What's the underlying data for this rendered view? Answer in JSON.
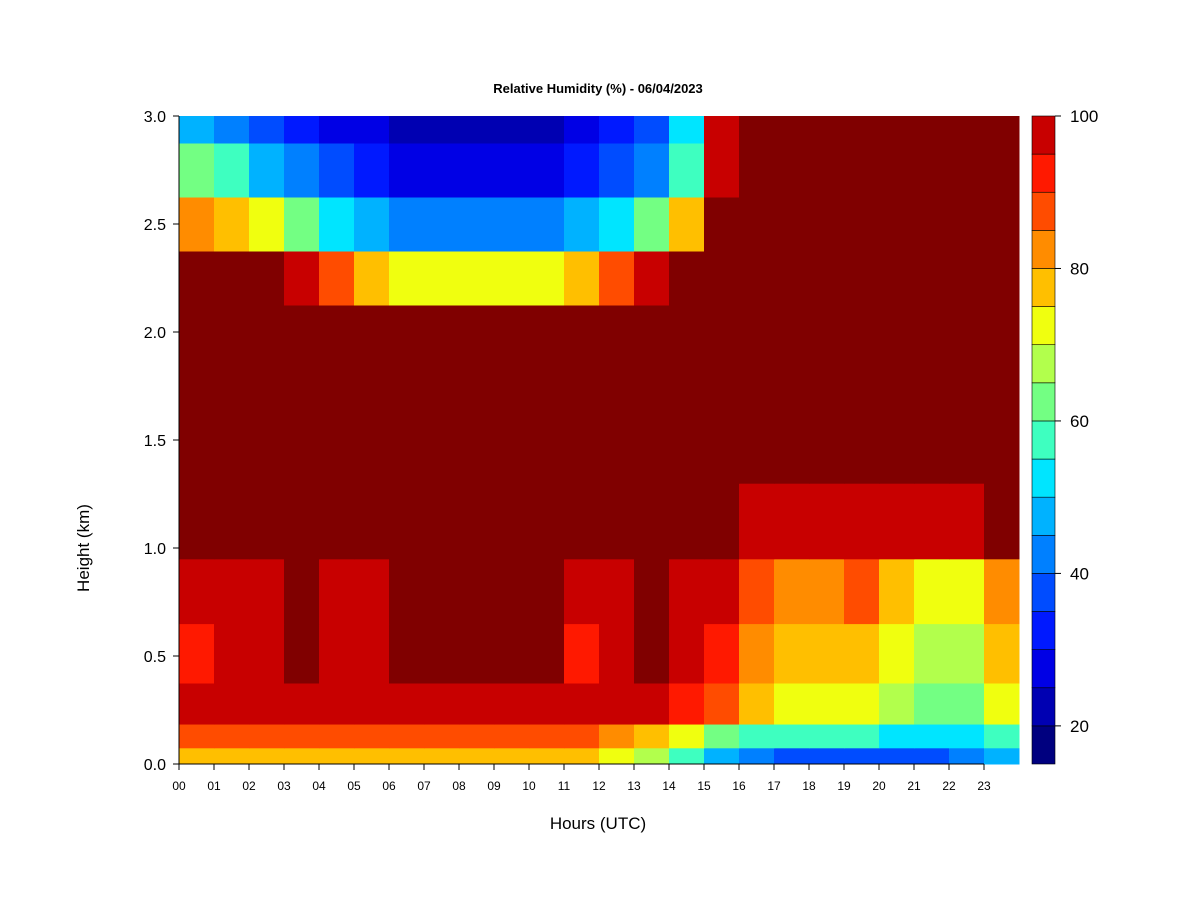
{
  "chart_data": {
    "type": "heatmap",
    "title": "Relative Humidity (%) - 06/04/2023",
    "xlabel": "Hours (UTC)",
    "ylabel": "Height (km)",
    "x_ticks": [
      "00",
      "01",
      "02",
      "03",
      "04",
      "05",
      "06",
      "07",
      "08",
      "09",
      "10",
      "11",
      "12",
      "13",
      "14",
      "15",
      "16",
      "17",
      "18",
      "19",
      "20",
      "21",
      "22",
      "23"
    ],
    "y_ticks": [
      "0.0",
      "0.5",
      "1.0",
      "1.5",
      "2.0",
      "2.5",
      "3.0"
    ],
    "xlim": [
      0,
      24
    ],
    "ylim": [
      0,
      3.0
    ],
    "colorbar": {
      "range": [
        15,
        100
      ],
      "ticks": [
        "20",
        "40",
        "60",
        "80",
        "100"
      ],
      "levels": [
        15,
        20,
        25,
        30,
        35,
        40,
        45,
        50,
        55,
        60,
        65,
        70,
        75,
        80,
        85,
        90,
        95,
        100
      ],
      "colors": [
        "#00007f",
        "#0000b2",
        "#0000e5",
        "#0019ff",
        "#004cff",
        "#0080ff",
        "#00b2ff",
        "#00e5ff",
        "#3effc0",
        "#73ff83",
        "#b2ff4c",
        "#f0ff0f",
        "#ffbf00",
        "#ff8c00",
        "#ff4c00",
        "#ff1900",
        "#c80000",
        "#800000"
      ]
    },
    "grid": false,
    "rows": [
      {
        "height_km": 3.0,
        "values": [
          45,
          40,
          35,
          30,
          28,
          25,
          22,
          20,
          20,
          20,
          22,
          25,
          30,
          38,
          50,
          95,
          100,
          100,
          100,
          100,
          100,
          100,
          100,
          100
        ]
      },
      {
        "height_km": 2.75,
        "values": [
          60,
          55,
          48,
          40,
          35,
          30,
          28,
          27,
          27,
          27,
          28,
          30,
          35,
          42,
          55,
          95,
          100,
          100,
          100,
          100,
          100,
          100,
          100,
          100
        ]
      },
      {
        "height_km": 2.5,
        "values": [
          80,
          75,
          70,
          60,
          50,
          45,
          42,
          40,
          40,
          40,
          42,
          45,
          50,
          60,
          75,
          100,
          100,
          100,
          100,
          100,
          100,
          100,
          100,
          100
        ]
      },
      {
        "height_km": 2.25,
        "values": [
          100,
          100,
          100,
          95,
          85,
          75,
          70,
          70,
          70,
          70,
          70,
          75,
          85,
          95,
          100,
          100,
          100,
          100,
          100,
          100,
          100,
          100,
          100,
          100
        ]
      },
      {
        "height_km": 2.0,
        "values": [
          100,
          100,
          100,
          100,
          100,
          100,
          100,
          100,
          100,
          100,
          100,
          100,
          100,
          100,
          100,
          100,
          100,
          100,
          100,
          100,
          100,
          100,
          100,
          100
        ]
      },
      {
        "height_km": 1.5,
        "values": [
          100,
          100,
          100,
          100,
          100,
          100,
          100,
          100,
          100,
          100,
          100,
          100,
          100,
          100,
          100,
          100,
          100,
          100,
          100,
          100,
          100,
          100,
          100,
          100
        ]
      },
      {
        "height_km": 1.1,
        "values": [
          100,
          100,
          100,
          100,
          100,
          100,
          100,
          100,
          100,
          100,
          100,
          100,
          100,
          100,
          100,
          100,
          95,
          95,
          95,
          95,
          95,
          95,
          95,
          100
        ]
      },
      {
        "height_km": 0.8,
        "values": [
          95,
          95,
          95,
          100,
          95,
          95,
          100,
          100,
          100,
          100,
          100,
          95,
          95,
          100,
          95,
          95,
          85,
          80,
          80,
          85,
          75,
          70,
          70,
          80
        ]
      },
      {
        "height_km": 0.5,
        "values": [
          90,
          95,
          95,
          100,
          95,
          95,
          100,
          100,
          100,
          100,
          100,
          90,
          95,
          100,
          95,
          90,
          80,
          75,
          75,
          78,
          70,
          65,
          65,
          75
        ]
      },
      {
        "height_km": 0.25,
        "values": [
          95,
          95,
          95,
          95,
          95,
          95,
          95,
          95,
          95,
          95,
          95,
          95,
          95,
          95,
          90,
          85,
          75,
          70,
          70,
          72,
          65,
          60,
          60,
          70
        ]
      },
      {
        "height_km": 0.12,
        "values": [
          85,
          85,
          85,
          85,
          85,
          85,
          85,
          85,
          85,
          85,
          85,
          85,
          80,
          75,
          70,
          60,
          55,
          55,
          55,
          55,
          50,
          50,
          50,
          55
        ]
      },
      {
        "height_km": 0.03,
        "values": [
          75,
          75,
          75,
          75,
          75,
          75,
          75,
          75,
          75,
          75,
          75,
          75,
          72,
          65,
          55,
          45,
          40,
          38,
          35,
          35,
          35,
          38,
          40,
          45
        ]
      }
    ]
  }
}
